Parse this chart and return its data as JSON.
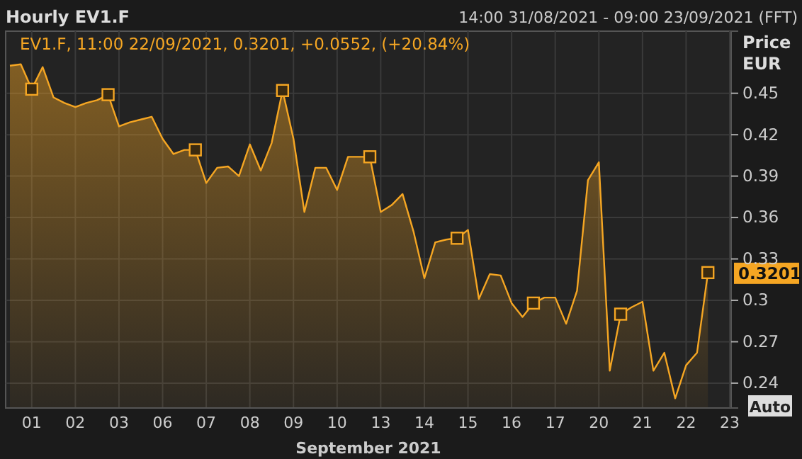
{
  "chart_data": {
    "type": "area",
    "title": "Hourly EV1.F",
    "subtitle": "14:00 31/08/2021 - 09:00 23/09/2021 (FFT)",
    "ylabel": "Price EUR",
    "xlabel": "September 2021",
    "annotations": [
      "EV1.F, 11:00 22/09/2021, 0.3201, +0.0552, (+20.84%)",
      "Auto"
    ],
    "categories": [
      null,
      null,
      "01",
      null,
      null,
      null,
      "02",
      null,
      null,
      null,
      "03",
      null,
      null,
      null,
      "06",
      null,
      null,
      null,
      "07",
      null,
      null,
      null,
      "08",
      null,
      null,
      null,
      "09",
      null,
      null,
      null,
      "10",
      null,
      null,
      null,
      "13",
      null,
      null,
      null,
      "14",
      null,
      null,
      null,
      "15",
      null,
      null,
      null,
      "16",
      null,
      null,
      null,
      "17",
      null,
      null,
      null,
      "20",
      null,
      null,
      null,
      "21",
      null,
      null,
      null,
      "22",
      null,
      null,
      null,
      "23"
    ],
    "ylim": [
      0.222,
      0.495
    ],
    "yticks": [
      0.24,
      0.27,
      {
        "value": 0.3,
        "label": "0.3"
      },
      0.33,
      0.36,
      0.39,
      0.42,
      0.45
    ],
    "grid": true,
    "series": [
      {
        "color": "#f5a623",
        "values": [
          0.47,
          0.471,
          0.453,
          0.469,
          0.447,
          0.443,
          0.44,
          0.443,
          0.445,
          0.449,
          0.426,
          0.429,
          0.431,
          0.433,
          0.417,
          0.406,
          0.409,
          0.409,
          0.385,
          0.396,
          0.397,
          0.39,
          0.413,
          0.394,
          0.414,
          0.452,
          0.417,
          0.364,
          0.396,
          0.396,
          0.38,
          0.404,
          0.404,
          0.404,
          0.364,
          0.369,
          0.377,
          0.35,
          0.316,
          0.342,
          0.344,
          0.345,
          0.351,
          0.301,
          0.319,
          0.318,
          0.298,
          0.288,
          0.298,
          0.302,
          0.302,
          0.283,
          0.307,
          0.387,
          0.4,
          0.249,
          0.29,
          0.295,
          0.299,
          0.249,
          0.262,
          0.229,
          0.253,
          0.262,
          0.3201,
          null,
          null
        ],
        "value_labels": [
          null,
          null,
          null,
          null,
          null,
          null,
          null,
          null,
          null,
          null,
          null,
          null,
          null,
          null,
          null,
          null,
          null,
          null,
          null,
          null,
          null,
          null,
          null,
          null,
          null,
          null,
          null,
          null,
          null,
          null,
          null,
          null,
          null,
          null,
          null,
          null,
          null,
          null,
          null,
          null,
          null,
          null,
          null,
          null,
          null,
          null,
          null,
          null,
          null,
          null,
          null,
          null,
          null,
          null,
          null,
          null,
          null,
          null,
          null,
          null,
          null,
          null,
          null,
          null,
          "0.3201",
          null,
          null
        ]
      },
      {
        "type": "scatter",
        "marker": "square",
        "color": "#f5a623",
        "values": [
          null,
          null,
          0.453,
          null,
          null,
          null,
          null,
          null,
          null,
          0.449,
          null,
          null,
          null,
          null,
          null,
          null,
          null,
          0.409,
          null,
          null,
          null,
          null,
          null,
          null,
          null,
          0.452,
          null,
          null,
          null,
          null,
          null,
          null,
          null,
          0.404,
          null,
          null,
          null,
          null,
          null,
          null,
          null,
          0.345,
          null,
          null,
          null,
          null,
          null,
          null,
          0.298,
          null,
          null,
          null,
          null,
          null,
          null,
          null,
          0.29,
          null,
          null,
          null,
          null,
          null,
          null,
          null,
          0.3201,
          null,
          null
        ]
      }
    ]
  }
}
